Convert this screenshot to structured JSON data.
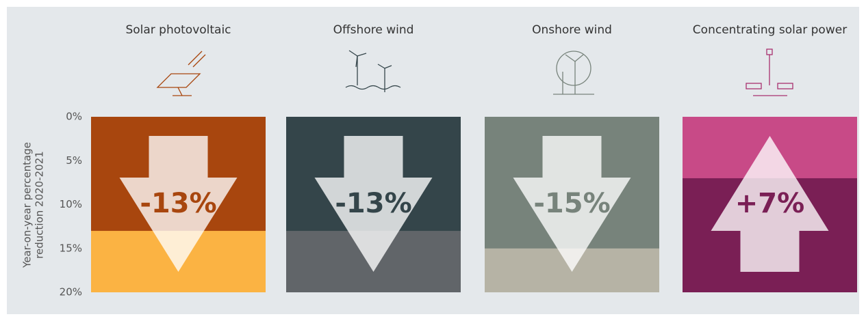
{
  "chart_data": {
    "type": "arrow-panels",
    "categories": [
      "Solar photovoltaic",
      "Offshore wind",
      "Onshore wind",
      "Concentrating solar power"
    ],
    "values": [
      -13,
      -13,
      -15,
      7
    ],
    "value_labels": [
      "-13%",
      "-13%",
      "-15%",
      "+7%"
    ],
    "colors": [
      "#a8460e",
      "#34454a",
      "#77837b",
      "#c84a87"
    ],
    "remainder_colors": [
      "#fbb343",
      "#616569",
      "#b6b3a5",
      "#7a1f55"
    ],
    "label_colors": [
      "#a8460e",
      "#34454a",
      "#77837b",
      "#7a1f55"
    ],
    "ylim": [
      0,
      20
    ],
    "yticks": [
      {
        "value": 0,
        "label": "0%"
      },
      {
        "value": 5,
        "label": "5%"
      },
      {
        "value": 10,
        "label": "10%"
      },
      {
        "value": 15,
        "label": "15%"
      },
      {
        "value": 20,
        "label": "20%"
      }
    ],
    "y_label": [
      "Year-on-year percentage",
      "reduction 2020-2021"
    ]
  }
}
